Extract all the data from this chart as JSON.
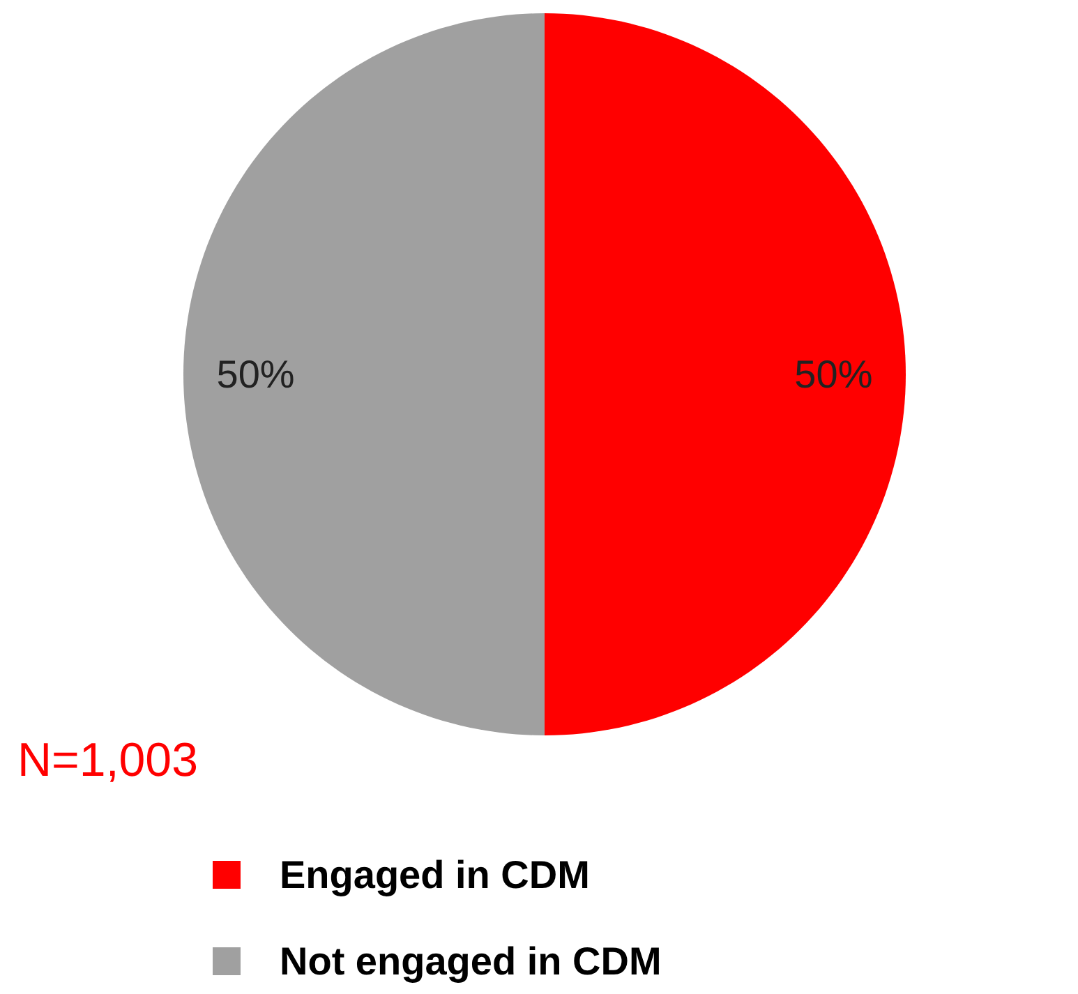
{
  "chart_data": {
    "type": "pie",
    "categories": [
      "Engaged in CDM",
      "Not engaged in CDM"
    ],
    "values": [
      50,
      50
    ],
    "colors": [
      "#ff0000",
      "#a0a0a0"
    ],
    "value_labels": [
      "50%",
      "50%"
    ],
    "annotations": [
      "N=1,003"
    ],
    "legend": "bottom"
  }
}
